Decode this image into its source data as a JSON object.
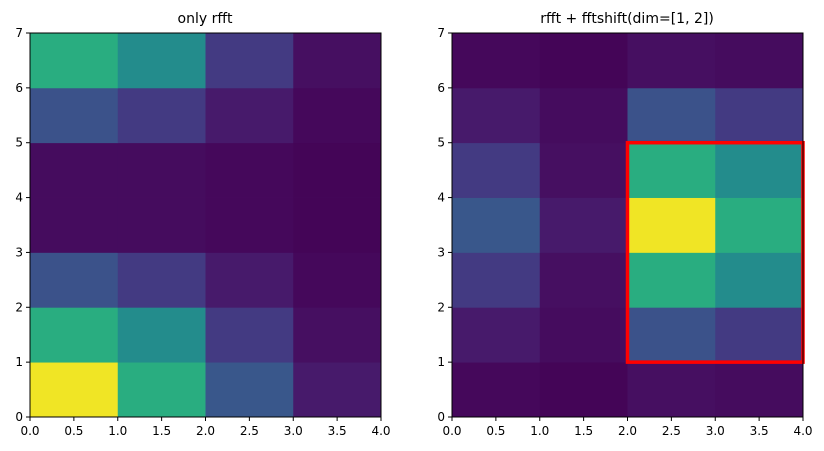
{
  "chart_data": [
    {
      "type": "heatmap",
      "title": "only rfft",
      "xlim": [
        0,
        4
      ],
      "ylim": [
        0,
        7
      ],
      "xticks": [
        "0.0",
        "0.5",
        "1.0",
        "1.5",
        "2.0",
        "2.5",
        "3.0",
        "3.5",
        "4.0"
      ],
      "yticks": [
        "0",
        "1",
        "2",
        "3",
        "4",
        "5",
        "6",
        "7"
      ],
      "colormap": "viridis",
      "value_range": [
        0,
        1
      ],
      "values": [
        [
          0.98,
          0.62,
          0.27,
          0.07
        ],
        [
          0.62,
          0.48,
          0.17,
          0.04
        ],
        [
          0.25,
          0.17,
          0.07,
          0.02
        ],
        [
          0.03,
          0.03,
          0.02,
          0.01
        ],
        [
          0.03,
          0.03,
          0.02,
          0.01
        ],
        [
          0.25,
          0.17,
          0.07,
          0.02
        ],
        [
          0.62,
          0.48,
          0.17,
          0.04
        ]
      ],
      "highlight": null
    },
    {
      "type": "heatmap",
      "title": "rfft + fftshift(dim=[1, 2])",
      "xlim": [
        0,
        4
      ],
      "ylim": [
        0,
        7
      ],
      "xticks": [
        "0.0",
        "0.5",
        "1.0",
        "1.5",
        "2.0",
        "2.5",
        "3.0",
        "3.5",
        "4.0"
      ],
      "yticks": [
        "0",
        "1",
        "2",
        "3",
        "4",
        "5",
        "6",
        "7"
      ],
      "colormap": "viridis",
      "value_range": [
        0,
        1
      ],
      "values": [
        [
          0.02,
          0.01,
          0.04,
          0.03
        ],
        [
          0.07,
          0.03,
          0.25,
          0.17
        ],
        [
          0.17,
          0.04,
          0.62,
          0.48
        ],
        [
          0.27,
          0.07,
          0.98,
          0.62
        ],
        [
          0.17,
          0.04,
          0.62,
          0.48
        ],
        [
          0.07,
          0.03,
          0.25,
          0.17
        ],
        [
          0.02,
          0.01,
          0.04,
          0.03
        ]
      ],
      "highlight": {
        "x": [
          2,
          4
        ],
        "y": [
          1,
          5
        ],
        "color": "#ff0000"
      }
    }
  ]
}
